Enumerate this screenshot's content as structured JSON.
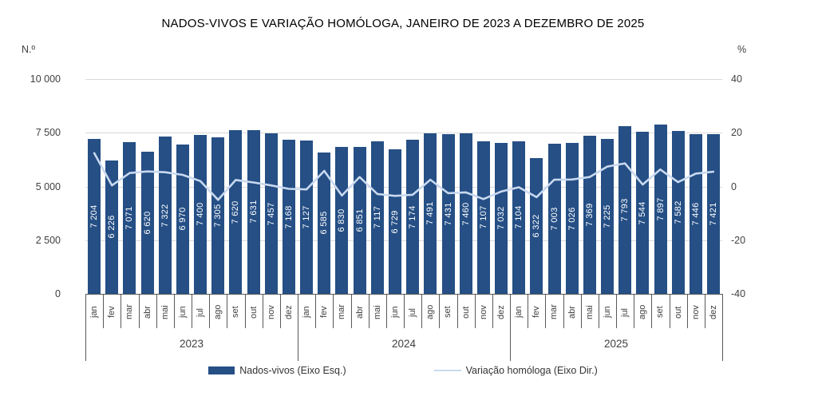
{
  "title": "NADOS-VIVOS E VARIAÇÃO HOMÓLOGA, JANEIRO DE 2023 A DEZEMBRO DE 2025",
  "left_axis": {
    "unit": "N.º",
    "ticks": [
      "10 000",
      "7 500",
      "5 000",
      "2 500",
      "0"
    ]
  },
  "right_axis": {
    "unit": "%",
    "ticks": [
      "40",
      "20",
      "0",
      "-20",
      "-40"
    ]
  },
  "colors": {
    "bar": "#254F85",
    "line": "#C9D9F0",
    "grid": "#D9D9D9",
    "axis": "#595959",
    "bar_label": "#FFFFFF"
  },
  "chart_data": {
    "type": "bar",
    "note": "combo bar + line chart, 36 monthly points",
    "title": "NADOS-VIVOS E VARIAÇÃO HOMÓLOGA, JANEIRO DE 2023 A DEZEMBRO DE 2025",
    "categories_months": [
      "jan",
      "fev",
      "mar",
      "abr",
      "mai",
      "jun",
      "jul",
      "ago",
      "set",
      "out",
      "nov",
      "dez"
    ],
    "categories_years": [
      "2023",
      "2024",
      "2025"
    ],
    "left_ylabel": "N.º",
    "right_ylabel": "%",
    "left_ylim": [
      0,
      10000
    ],
    "right_ylim": [
      -40,
      40
    ],
    "grid": true,
    "legend_position": "bottom",
    "series": [
      {
        "name": "Nados-vivos (Eixo Esq.)",
        "type": "bar",
        "axis": "left",
        "values": [
          7204,
          6226,
          7071,
          6620,
          7322,
          6970,
          7400,
          7305,
          7620,
          7631,
          7457,
          7168,
          7127,
          6585,
          6830,
          6851,
          7117,
          6729,
          7174,
          7491,
          7431,
          7460,
          7107,
          7032,
          7104,
          6322,
          7003,
          7026,
          7369,
          7225,
          7793,
          7544,
          7897,
          7582,
          7446,
          7421
        ]
      },
      {
        "name": "Variação homóloga (Eixo Dir.)",
        "type": "line",
        "axis": "right",
        "values": [
          12.4,
          0.4,
          5.0,
          5.6,
          5.3,
          4.3,
          2.0,
          -5.0,
          2.4,
          1.5,
          0.4,
          -0.9,
          -1.1,
          5.8,
          -3.4,
          3.5,
          -2.8,
          -3.5,
          -3.1,
          2.5,
          -2.5,
          -2.2,
          -4.7,
          -1.9,
          -0.3,
          -4.0,
          2.5,
          2.6,
          3.5,
          7.4,
          8.6,
          0.7,
          6.3,
          1.6,
          4.8,
          5.5
        ]
      }
    ]
  },
  "legend": {
    "bar_label": "Nados-vivos (Eixo Esq.)",
    "line_label": "Variação homóloga (Eixo Dir.)"
  }
}
